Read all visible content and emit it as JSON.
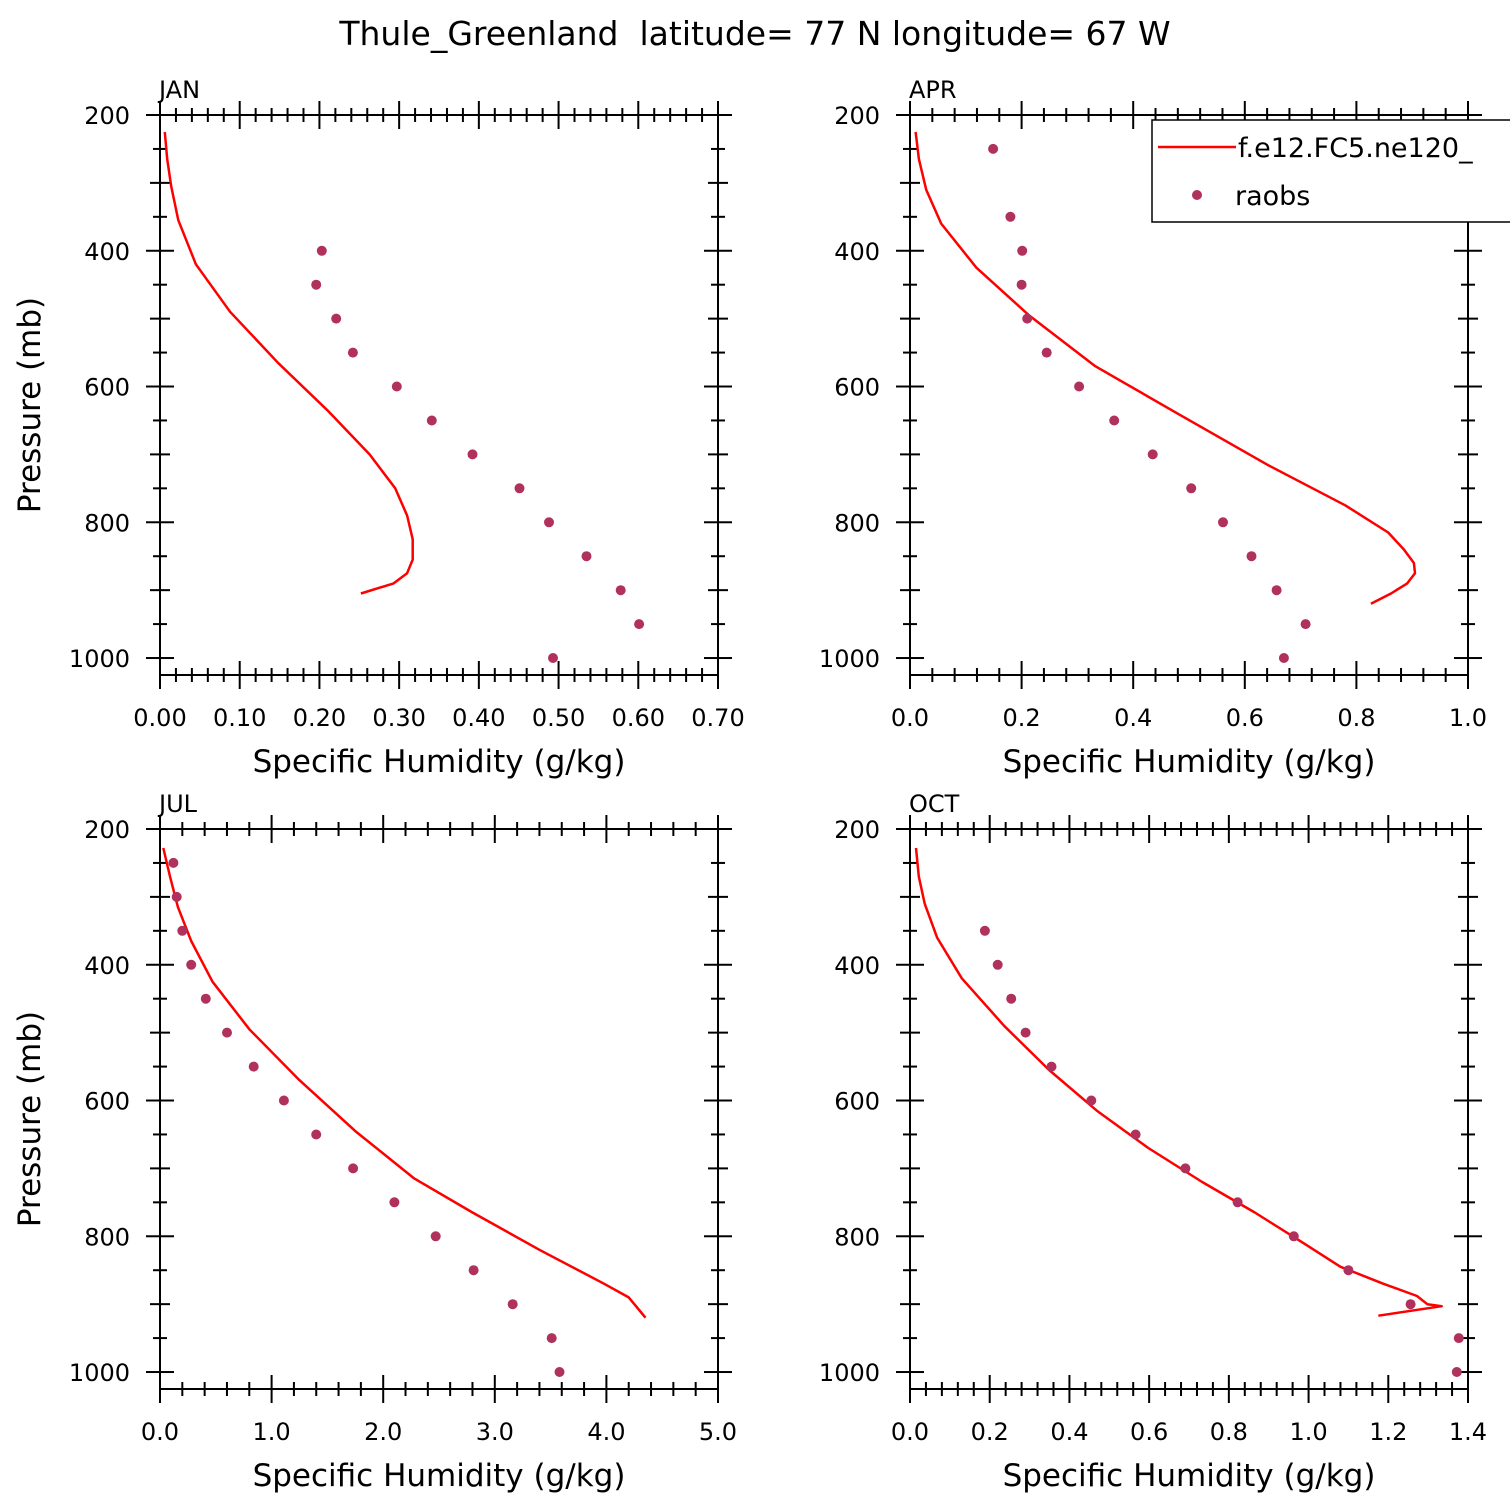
{
  "title": "Thule_Greenland  latitude= 77 N longitude= 67 W",
  "colors": {
    "model": "#ff0000",
    "obs": "#b0305e",
    "axis": "#000000"
  },
  "legend": {
    "model_label": "f.e12.FC5.ne120_",
    "obs_label": "raobs"
  },
  "chart_data": [
    {
      "type": "line",
      "panel": "JAN",
      "title": "JAN",
      "xlabel": "Specific Humidity (g/kg)",
      "ylabel": "Pressure (mb)",
      "xlim": [
        0,
        0.7
      ],
      "ylim": [
        200,
        1025
      ],
      "xticks": [
        0,
        0.1,
        0.2,
        0.3,
        0.4,
        0.5,
        0.6,
        0.7
      ],
      "xtick_labels": [
        "0.00",
        "0.10",
        "0.20",
        "0.30",
        "0.40",
        "0.50",
        "0.60",
        "0.70"
      ],
      "yticks": [
        200,
        400,
        600,
        800,
        1000
      ],
      "ytick_labels": [
        "200",
        "400",
        "600",
        "800",
        "1000"
      ],
      "series": [
        {
          "name": "f.e12.FC5.ne120_",
          "style": "line",
          "x": [
            0.006,
            0.009,
            0.014,
            0.023,
            0.045,
            0.088,
            0.148,
            0.21,
            0.263,
            0.295,
            0.31,
            0.317,
            0.317,
            0.31,
            0.293,
            0.252
          ],
          "y": [
            225,
            265,
            305,
            355,
            420,
            490,
            565,
            635,
            700,
            750,
            790,
            825,
            855,
            875,
            890,
            905
          ]
        },
        {
          "name": "raobs",
          "style": "points",
          "x": [
            0.203,
            0.196,
            0.221,
            0.242,
            0.297,
            0.341,
            0.392,
            0.451,
            0.488,
            0.535,
            0.578,
            0.601,
            0.493
          ],
          "y": [
            400,
            450,
            500,
            550,
            600,
            650,
            700,
            750,
            800,
            850,
            900,
            950,
            1000
          ]
        }
      ]
    },
    {
      "type": "line",
      "panel": "APR",
      "title": "APR",
      "xlabel": "Specific Humidity (g/kg)",
      "ylabel": "",
      "xlim": [
        0,
        1.0
      ],
      "ylim": [
        200,
        1025
      ],
      "xticks": [
        0,
        0.2,
        0.4,
        0.6,
        0.8,
        1.0
      ],
      "xtick_labels": [
        "0.0",
        "0.2",
        "0.4",
        "0.6",
        "0.8",
        "1.0"
      ],
      "yticks": [
        200,
        400,
        600,
        800,
        1000
      ],
      "ytick_labels": [
        "200",
        "400",
        "600",
        "800",
        "1000"
      ],
      "series": [
        {
          "name": "f.e12.FC5.ne120_",
          "style": "line",
          "x": [
            0.01,
            0.016,
            0.029,
            0.056,
            0.119,
            0.213,
            0.332,
            0.48,
            0.64,
            0.78,
            0.857,
            0.885,
            0.903,
            0.905,
            0.891,
            0.862,
            0.826
          ],
          "y": [
            225,
            265,
            310,
            360,
            425,
            495,
            570,
            640,
            715,
            775,
            815,
            840,
            860,
            875,
            890,
            905,
            920
          ]
        },
        {
          "name": "raobs",
          "style": "points",
          "x": [
            0.149,
            0.18,
            0.201,
            0.2,
            0.21,
            0.245,
            0.303,
            0.366,
            0.435,
            0.504,
            0.561,
            0.612,
            0.657,
            0.709,
            0.67
          ],
          "y": [
            250,
            350,
            400,
            450,
            500,
            550,
            600,
            650,
            700,
            750,
            800,
            850,
            900,
            950,
            1000
          ]
        }
      ]
    },
    {
      "type": "line",
      "panel": "JUL",
      "title": "JUL",
      "xlabel": "Specific Humidity (g/kg)",
      "ylabel": "Pressure (mb)",
      "xlim": [
        0,
        5.0
      ],
      "ylim": [
        200,
        1025
      ],
      "xticks": [
        0,
        1,
        2,
        3,
        4,
        5
      ],
      "xtick_labels": [
        "0.0",
        "1.0",
        "2.0",
        "3.0",
        "4.0",
        "5.0"
      ],
      "yticks": [
        200,
        400,
        600,
        800,
        1000
      ],
      "ytick_labels": [
        "200",
        "400",
        "600",
        "800",
        "1000"
      ],
      "series": [
        {
          "name": "f.e12.FC5.ne120_",
          "style": "line",
          "x": [
            0.03,
            0.09,
            0.16,
            0.28,
            0.47,
            0.8,
            1.25,
            1.75,
            2.28,
            2.8,
            3.4,
            3.98,
            4.2,
            4.35
          ],
          "y": [
            228,
            270,
            315,
            365,
            425,
            495,
            570,
            645,
            715,
            765,
            820,
            870,
            890,
            920
          ]
        },
        {
          "name": "raobs",
          "style": "points",
          "x": [
            0.12,
            0.15,
            0.2,
            0.28,
            0.41,
            0.6,
            0.84,
            1.11,
            1.4,
            1.73,
            2.1,
            2.47,
            2.81,
            3.16,
            3.51,
            3.58
          ],
          "y": [
            250,
            300,
            350,
            400,
            450,
            500,
            550,
            600,
            650,
            700,
            750,
            800,
            850,
            900,
            950,
            1000
          ]
        }
      ]
    },
    {
      "type": "line",
      "panel": "OCT",
      "title": "OCT",
      "xlabel": "Specific Humidity (g/kg)",
      "ylabel": "",
      "xlim": [
        0,
        1.4
      ],
      "ylim": [
        200,
        1025
      ],
      "xticks": [
        0,
        0.2,
        0.4,
        0.6,
        0.8,
        1.0,
        1.2,
        1.4
      ],
      "xtick_labels": [
        "0.0",
        "0.2",
        "0.4",
        "0.6",
        "0.8",
        "1.0",
        "1.2",
        "1.4"
      ],
      "yticks": [
        200,
        400,
        600,
        800,
        1000
      ],
      "ytick_labels": [
        "200",
        "400",
        "600",
        "800",
        "1000"
      ],
      "series": [
        {
          "name": "f.e12.FC5.ne120_",
          "style": "line",
          "x": [
            0.015,
            0.022,
            0.037,
            0.068,
            0.13,
            0.236,
            0.349,
            0.469,
            0.598,
            0.733,
            0.865,
            0.987,
            1.08,
            1.188,
            1.272,
            1.298,
            1.334,
            1.175
          ],
          "y": [
            228,
            270,
            310,
            360,
            420,
            490,
            555,
            615,
            670,
            720,
            765,
            810,
            845,
            870,
            888,
            900,
            903,
            917
          ]
        },
        {
          "name": "raobs",
          "style": "points",
          "x": [
            0.188,
            0.22,
            0.254,
            0.29,
            0.355,
            0.455,
            0.566,
            0.691,
            0.822,
            0.963,
            1.1,
            1.256,
            1.377,
            1.372
          ],
          "y": [
            350,
            400,
            450,
            500,
            550,
            600,
            650,
            700,
            750,
            800,
            850,
            900,
            950,
            1000
          ]
        }
      ]
    }
  ]
}
